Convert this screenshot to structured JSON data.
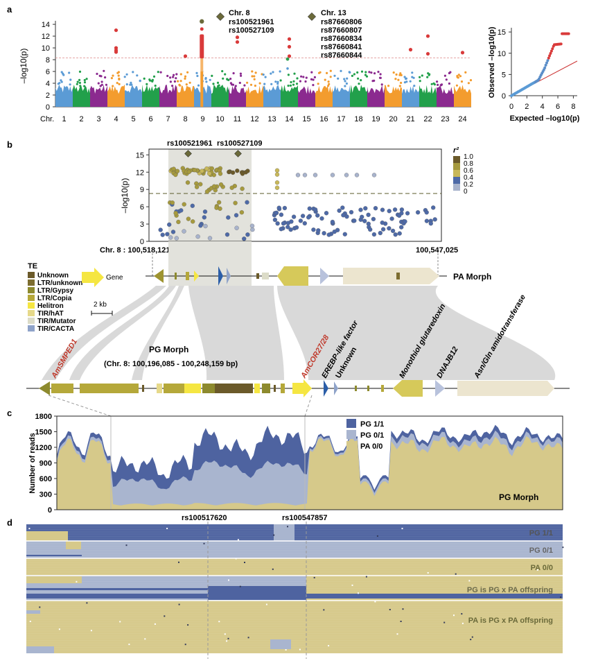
{
  "panels": {
    "a": "a",
    "b": "b",
    "c": "c",
    "d": "d"
  },
  "panel_a": {
    "ylabel": "–log10(p)",
    "yticks": [
      "0",
      "2",
      "4",
      "6",
      "8",
      "10",
      "12",
      "14"
    ],
    "xlabel": "Chr.",
    "chromosomes": [
      "1",
      "2",
      "3",
      "4",
      "5",
      "6",
      "7",
      "8",
      "9",
      "10",
      "11",
      "12",
      "13",
      "14",
      "15",
      "16",
      "17",
      "18",
      "19",
      "20",
      "21",
      "22",
      "23",
      "24"
    ],
    "chrom_colors": [
      "#5b9bd5",
      "#22a04b",
      "#8b2a8f",
      "#f39c2e"
    ],
    "threshold": 8.3,
    "peak8": {
      "chr": "Chr. 8",
      "snps": [
        "rs100521961",
        "rs100527109"
      ]
    },
    "peak13": {
      "chr": "Chr. 13",
      "snps": [
        "rs87660806",
        "rs87660807",
        "rs87660834",
        "rs87660841",
        "rs87660844"
      ]
    }
  },
  "qq": {
    "ylabel": "Observed –log10(p)",
    "xlabel": "Expected –log10(p)",
    "xticks": [
      "0",
      "2",
      "4",
      "6",
      "8"
    ],
    "yticks": [
      "0",
      "5",
      "10",
      "15"
    ]
  },
  "panel_b": {
    "ylabel": "–log10(p)",
    "yticks": [
      "0",
      "3",
      "6",
      "9",
      "12",
      "15"
    ],
    "lead_snps": [
      "rs100521961",
      "rs100527109"
    ],
    "left_coord": "Chr. 8 : 100,518,121",
    "right_coord": "100,547,025",
    "r2_title": "r²",
    "r2_ticks": [
      "1.0",
      "0.8",
      "0.6",
      "0.4",
      "0.2",
      "0"
    ],
    "r2_colors": [
      "#6b5a2a",
      "#a69a3e",
      "#c8b85a",
      "#4e6aa7",
      "#a8b3cc"
    ],
    "pa_morph": "PA Morph",
    "pg_morph": "PG Morph",
    "pg_coords": "(Chr. 8: 100,196,085 - 100,248,159 bp)",
    "te_title": "TE",
    "te_legend": [
      {
        "label": "Unknown",
        "color": "#6b5a2a"
      },
      {
        "label": "LTR/unknown",
        "color": "#7d6d30"
      },
      {
        "label": "LTR/Gypsy",
        "color": "#8d8a2e"
      },
      {
        "label": "LTR/Copia",
        "color": "#b5a83a"
      },
      {
        "label": "Helitron",
        "color": "#f5e642"
      },
      {
        "label": "TIR/hAT",
        "color": "#e6d98a"
      },
      {
        "label": "TIR/Mutator",
        "color": "#dcdcc8"
      },
      {
        "label": "TIR/CACTA",
        "color": "#8fa3c9"
      }
    ],
    "gene_label": "Gene",
    "scale_label": "2 kb",
    "genes": [
      "AmSMPED1",
      "AmCOR27/28",
      "EREBP-like factor",
      "Unknown",
      "Monothiol glutaredoxin",
      "DNAJB12",
      "Asn/Gln amidotransferase"
    ]
  },
  "panel_c": {
    "ylabel": "Number of reads",
    "yticks": [
      "0",
      "300",
      "600",
      "900",
      "1200",
      "1500",
      "1800"
    ],
    "legend": [
      {
        "label": "PG  1/1",
        "color": "#4e63a0"
      },
      {
        "label": "PG  0/1",
        "color": "#a9b5cf"
      },
      {
        "label": "PA  0/0",
        "color": "#d6c98a"
      }
    ],
    "morph": "PG Morph"
  },
  "panel_d": {
    "snp_left": "rs100517620",
    "snp_right": "rs100547857",
    "tracks": [
      "PG  1/1",
      "PG  0/1",
      "PA  0/0",
      "PG is PG x PA offspring",
      "PA is PG x PA offspring"
    ]
  }
}
